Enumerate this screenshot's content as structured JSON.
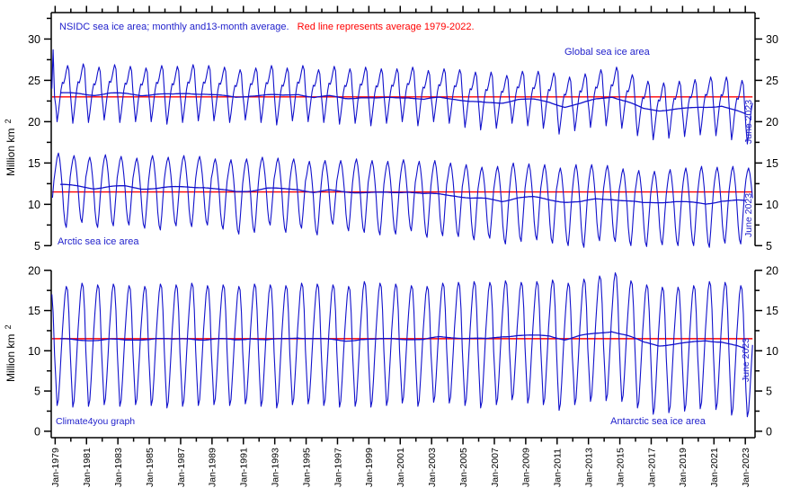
{
  "title": {
    "main": "NSIDC sea ice area; monthly and13-month average.",
    "note": "Red line represents average 1979-2022."
  },
  "watermark": "Climate4you graph",
  "colors": {
    "series_blue": "#1111cc",
    "text_blue": "#2222cc",
    "mean_red": "#ff0000",
    "axis_black": "#000000",
    "background": "#ffffff"
  },
  "chart_data": {
    "type": "line",
    "title": "NSIDC sea ice area; monthly and13-month average. Red line represents average 1979-2022.",
    "ylabel": "Million km 2",
    "xlabel": "",
    "grid": false,
    "legend_position": "none",
    "x_axis": {
      "min": 1978.75,
      "max": 2023.62,
      "minor_tick_every_years": 1,
      "label_years": [
        1979,
        1981,
        1983,
        1985,
        1987,
        1989,
        1991,
        1993,
        1995,
        1997,
        1999,
        2001,
        2003,
        2005,
        2007,
        2009,
        2011,
        2013,
        2015,
        2017,
        2019,
        2021,
        2023
      ],
      "tick_labels": [
        "Jan-1979",
        "Jan-1981",
        "Jan-1983",
        "Jan-1985",
        "Jan-1987",
        "Jan-1989",
        "Jan-1991",
        "Jan-1993",
        "Jan-1995",
        "Jan-1997",
        "Jan-1999",
        "Jan-2001",
        "Jan-2003",
        "Jan-2005",
        "Jan-2007",
        "Jan-2009",
        "Jan-2011",
        "Jan-2013",
        "Jan-2015",
        "Jan-2017",
        "Jan-2019",
        "Jan-2021",
        "Jan-2023"
      ]
    },
    "panels": [
      {
        "name": "global-and-arctic",
        "ylabel": "Million km",
        "ylabel_sup": "2",
        "ylim": [
          3.95,
          33.2
        ],
        "yticks": [
          5,
          10,
          15,
          20,
          25,
          30
        ],
        "yticks_minor": [
          7.5,
          12.5,
          17.5,
          22.5,
          27.5,
          32.5
        ],
        "series_ids": [
          "global",
          "arctic"
        ]
      },
      {
        "name": "antarctic",
        "ylabel": "Million km",
        "ylabel_sup": "2",
        "ylim": [
          -0.8,
          20.2
        ],
        "yticks": [
          0,
          5,
          10,
          15,
          20
        ],
        "yticks_minor": [
          2.5,
          7.5,
          12.5,
          17.5
        ],
        "series_ids": [
          "antarctic"
        ]
      }
    ],
    "series": {
      "global": {
        "label": "Global sea ice area",
        "end_label": "June 2023",
        "mean_1979_2022": 23.0,
        "year_start": 1979,
        "end_month_index": 5,
        "seasonal_shape": [
          0.28,
          0.0,
          0.17,
          0.38,
          0.57,
          0.7,
          0.68,
          0.77,
          0.9,
          1.0,
          0.92,
          0.55
        ],
        "prelude": [
          [
            1978.79,
            24.0
          ],
          [
            1978.87,
            28.7
          ],
          [
            1978.96,
            23.0
          ]
        ],
        "yearly_max": [
          26.8,
          27.0,
          26.6,
          26.9,
          26.7,
          26.5,
          26.8,
          26.7,
          26.9,
          26.8,
          26.6,
          26.3,
          26.5,
          26.8,
          26.5,
          26.8,
          26.3,
          26.7,
          26.4,
          26.6,
          26.4,
          26.4,
          26.6,
          26.2,
          26.4,
          26.3,
          26.0,
          26.0,
          25.6,
          26.1,
          26.1,
          25.9,
          25.4,
          25.8,
          26.3,
          26.6,
          25.7,
          24.9,
          24.7,
          24.9,
          25.1,
          25.4,
          25.4,
          25.0,
          24.4
        ],
        "yearly_min": [
          20.0,
          19.8,
          19.9,
          20.2,
          19.9,
          20.0,
          20.0,
          19.7,
          19.9,
          20.1,
          20.1,
          19.9,
          20.2,
          19.9,
          19.6,
          20.1,
          20.0,
          19.9,
          19.7,
          19.8,
          19.5,
          19.8,
          20.0,
          19.5,
          20.0,
          19.8,
          19.3,
          19.0,
          19.2,
          19.8,
          19.5,
          19.2,
          18.5,
          18.9,
          19.3,
          19.5,
          19.2,
          18.3,
          17.8,
          18.0,
          18.2,
          18.4,
          18.3,
          17.8,
          17.3
        ],
        "yearly_avg": [
          23.4,
          23.4,
          23.3,
          23.5,
          23.4,
          23.2,
          23.3,
          23.2,
          23.4,
          23.4,
          23.2,
          23.0,
          23.2,
          23.2,
          23.1,
          23.3,
          22.9,
          23.1,
          22.9,
          23.0,
          22.8,
          22.9,
          22.9,
          22.6,
          22.9,
          22.8,
          22.5,
          22.3,
          22.3,
          22.7,
          22.6,
          22.3,
          21.8,
          22.2,
          22.8,
          23.1,
          22.4,
          21.5,
          21.3,
          21.5,
          21.6,
          21.8,
          22.0,
          21.3,
          20.9
        ]
      },
      "arctic": {
        "label": "Arctic sea ice area",
        "end_label": "June 2023",
        "mean_1979_2022": 11.5,
        "year_start": 1979,
        "end_month_index": 5,
        "seasonal_shape": [
          0.82,
          0.94,
          1.0,
          0.91,
          0.74,
          0.52,
          0.24,
          0.06,
          0.0,
          0.19,
          0.44,
          0.68
        ],
        "prelude": [
          [
            1978.83,
            10.8
          ],
          [
            1978.92,
            12.9
          ]
        ],
        "yearly_max": [
          16.2,
          15.9,
          15.7,
          16.0,
          15.8,
          15.6,
          15.9,
          15.7,
          15.9,
          15.8,
          15.5,
          15.4,
          15.5,
          15.7,
          15.6,
          15.5,
          15.2,
          15.3,
          15.3,
          15.5,
          15.3,
          15.2,
          15.4,
          15.2,
          15.3,
          15.0,
          14.8,
          14.5,
          14.6,
          15.0,
          14.9,
          14.8,
          14.4,
          14.8,
          14.8,
          14.7,
          14.3,
          14.1,
          14.0,
          14.2,
          14.4,
          14.6,
          14.5,
          14.6,
          14.4
        ],
        "yearly_min": [
          7.2,
          7.8,
          7.2,
          7.4,
          7.5,
          7.1,
          6.9,
          7.4,
          7.3,
          7.5,
          7.0,
          6.4,
          6.6,
          7.5,
          6.6,
          7.1,
          6.3,
          7.6,
          6.8,
          6.6,
          6.3,
          6.4,
          6.8,
          6.0,
          6.2,
          6.1,
          5.7,
          5.9,
          5.2,
          5.5,
          5.7,
          5.3,
          5.0,
          4.8,
          5.6,
          5.5,
          5.0,
          4.9,
          5.1,
          5.0,
          5.0,
          4.8,
          5.3,
          5.2,
          6.8
        ],
        "yearly_avg": [
          12.3,
          12.2,
          12.0,
          12.2,
          12.2,
          11.9,
          11.9,
          12.0,
          12.1,
          12.1,
          11.8,
          11.6,
          11.7,
          11.9,
          11.8,
          11.8,
          11.4,
          11.7,
          11.6,
          11.5,
          11.4,
          11.4,
          11.5,
          11.2,
          11.2,
          11.1,
          10.8,
          10.7,
          10.4,
          10.8,
          10.8,
          10.5,
          10.3,
          10.3,
          10.7,
          10.7,
          10.4,
          10.1,
          10.2,
          10.3,
          10.2,
          10.1,
          10.5,
          10.5,
          10.4
        ]
      },
      "antarctic": {
        "label": "Antarctic sea ice area",
        "end_label": "June 2023",
        "mean_1979_2022": 11.5,
        "year_start": 1979,
        "end_month_index": 5,
        "seasonal_shape": [
          0.22,
          0.0,
          0.05,
          0.22,
          0.42,
          0.62,
          0.78,
          0.93,
          1.0,
          0.97,
          0.78,
          0.45
        ],
        "prelude": [
          [
            1978.79,
            17.0
          ],
          [
            1978.87,
            14.8
          ],
          [
            1978.96,
            9.5
          ]
        ],
        "yearly_max": [
          18.0,
          18.4,
          18.2,
          18.3,
          18.1,
          18.0,
          18.3,
          18.2,
          18.4,
          18.1,
          18.2,
          18.0,
          18.3,
          18.2,
          18.1,
          18.4,
          18.3,
          18.2,
          18.0,
          18.6,
          18.4,
          18.3,
          18.1,
          18.0,
          18.4,
          18.5,
          18.6,
          18.5,
          18.7,
          18.5,
          18.6,
          18.8,
          18.4,
          18.9,
          19.3,
          19.7,
          18.7,
          18.2,
          17.9,
          17.9,
          18.1,
          18.6,
          18.5,
          18.1,
          16.2
        ],
        "yearly_min": [
          3.2,
          3.0,
          3.1,
          3.3,
          3.1,
          3.3,
          3.2,
          2.9,
          3.1,
          3.2,
          3.3,
          3.2,
          3.4,
          3.1,
          2.9,
          3.3,
          3.4,
          3.2,
          3.0,
          3.1,
          3.0,
          3.2,
          3.5,
          3.1,
          3.6,
          3.5,
          3.2,
          2.9,
          3.3,
          3.9,
          3.5,
          3.3,
          2.6,
          3.3,
          3.7,
          3.8,
          3.7,
          2.9,
          2.1,
          2.3,
          2.5,
          2.8,
          2.7,
          2.0,
          1.8
        ],
        "yearly_avg": [
          11.4,
          11.3,
          11.4,
          11.5,
          11.3,
          11.4,
          11.5,
          11.3,
          11.5,
          11.4,
          11.5,
          11.4,
          11.6,
          11.3,
          11.4,
          11.6,
          11.5,
          11.4,
          11.3,
          11.5,
          11.4,
          11.5,
          11.4,
          11.3,
          11.7,
          11.7,
          11.6,
          11.5,
          11.8,
          11.9,
          11.8,
          11.8,
          11.4,
          11.9,
          12.2,
          12.5,
          11.9,
          11.0,
          10.6,
          10.8,
          11.0,
          11.3,
          11.2,
          10.6,
          10.2
        ]
      }
    }
  }
}
